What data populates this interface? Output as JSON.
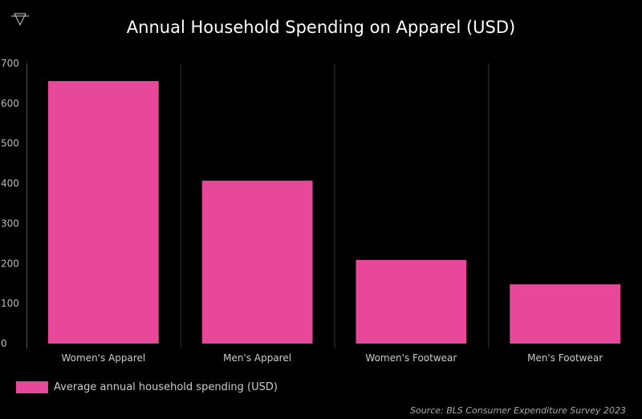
{
  "chart_data": {
    "type": "bar",
    "title": "Annual Household Spending on Apparel (USD)",
    "categories": [
      "Women's Apparel",
      "Men's Apparel",
      "Women's Footwear",
      "Men's Footwear"
    ],
    "series": [
      {
        "name": "Average annual household spending (USD)",
        "values": [
          656,
          407,
          209,
          148
        ],
        "color": "#e8489a"
      }
    ],
    "xlabel": "",
    "ylabel": "",
    "ylim": [
      0,
      700
    ],
    "yticks": [
      "0",
      "100",
      "200",
      "300",
      "400",
      "500",
      "600",
      "700"
    ],
    "grid": "vertical separators",
    "legend_position": "bottom-left"
  },
  "logo": {
    "icon": "triangle-logo-icon"
  },
  "source": "Source: BLS Consumer Expenditure Survey 2023",
  "colors": {
    "background": "#000000",
    "bar": "#e8489a",
    "gridline": "#333333"
  }
}
